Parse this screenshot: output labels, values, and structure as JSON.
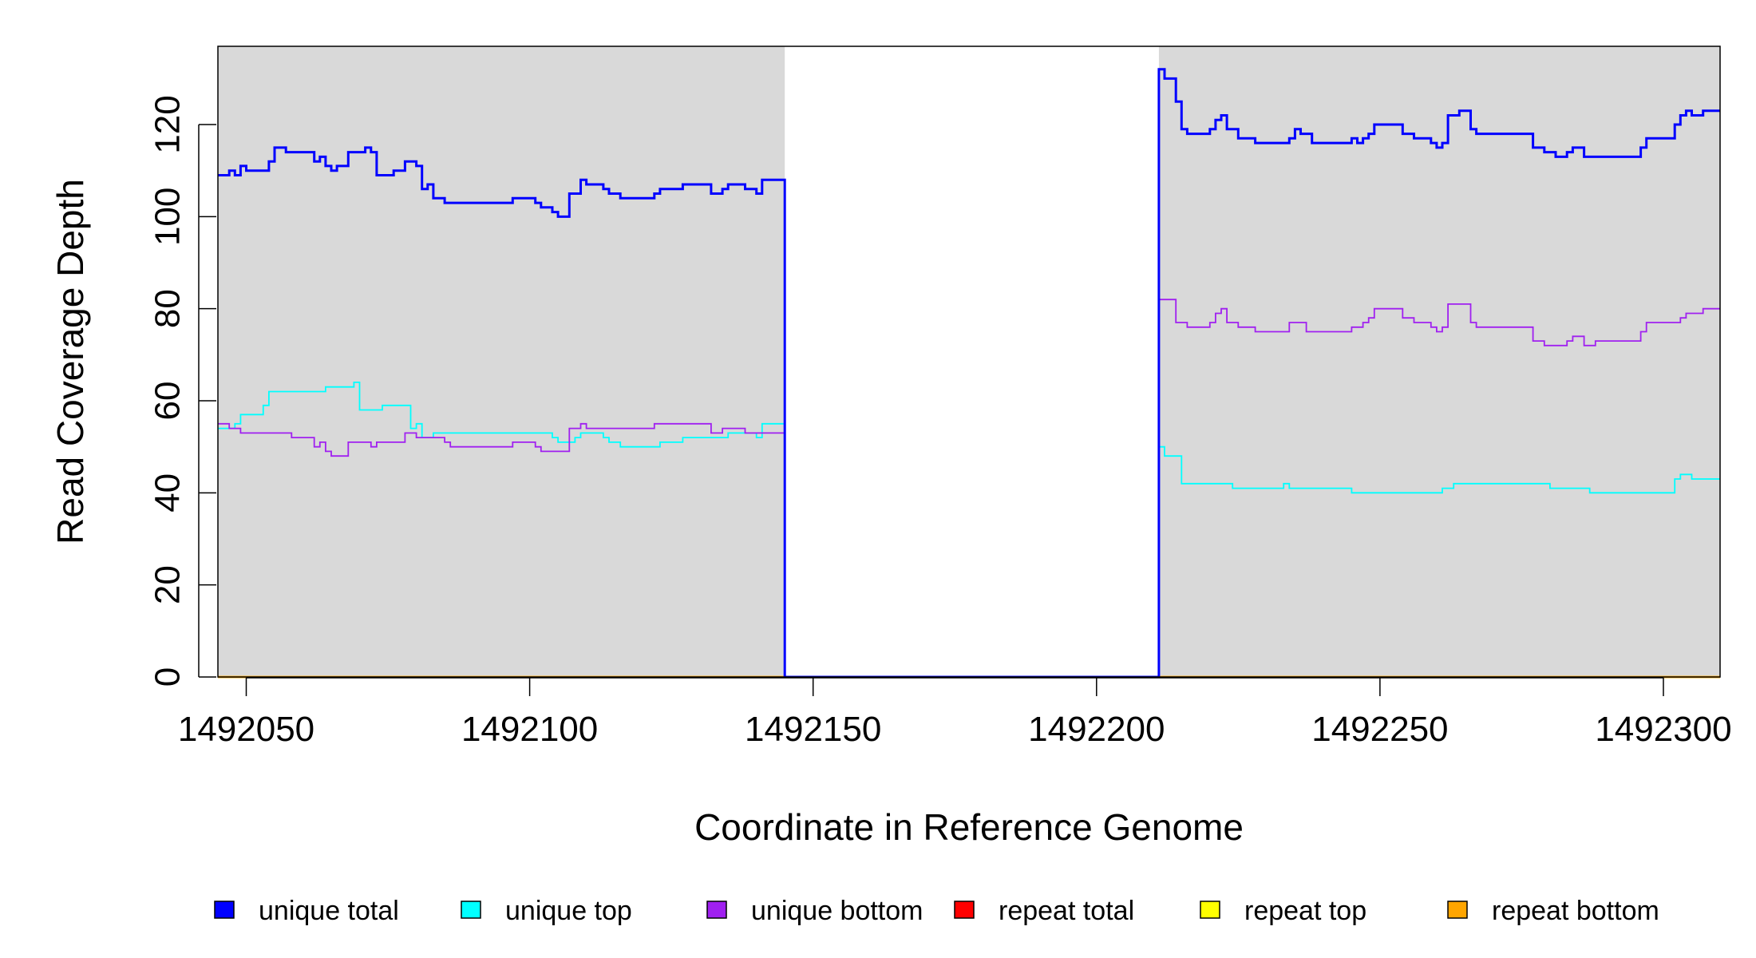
{
  "chart_data": {
    "type": "line",
    "xlabel": "Coordinate in Reference Genome",
    "ylabel": "Read Coverage Depth",
    "xlim": [
      1492045,
      1492310
    ],
    "ylim": [
      0,
      137
    ],
    "x_ticks": [
      1492050,
      1492100,
      1492150,
      1492200,
      1492250,
      1492300
    ],
    "x_tick_labels": [
      "1492050",
      "1492100",
      "1492150",
      "1492200",
      "1492250",
      "1492300"
    ],
    "y_ticks": [
      0,
      20,
      40,
      60,
      80,
      100,
      120
    ],
    "y_tick_labels": [
      "0",
      "20",
      "40",
      "60",
      "80",
      "100",
      "120"
    ],
    "shaded_regions": [
      {
        "x_start": 1492045,
        "x_end": 1492145,
        "color": "#d9d9d9"
      },
      {
        "x_start": 1492211,
        "x_end": 1492310,
        "color": "#d9d9d9"
      }
    ],
    "legend_position": "bottom",
    "series": [
      {
        "name": "unique total",
        "color": "#0000ff",
        "points": [
          [
            1492045,
            109
          ],
          [
            1492047,
            110
          ],
          [
            1492048,
            109
          ],
          [
            1492049,
            111
          ],
          [
            1492050,
            110
          ],
          [
            1492052,
            110
          ],
          [
            1492053,
            110
          ],
          [
            1492054,
            112
          ],
          [
            1492055,
            115
          ],
          [
            1492057,
            114
          ],
          [
            1492060,
            114
          ],
          [
            1492061,
            114
          ],
          [
            1492062,
            112
          ],
          [
            1492063,
            113
          ],
          [
            1492064,
            111
          ],
          [
            1492065,
            110
          ],
          [
            1492066,
            111
          ],
          [
            1492068,
            114
          ],
          [
            1492071,
            115
          ],
          [
            1492072,
            114
          ],
          [
            1492073,
            109
          ],
          [
            1492076,
            110
          ],
          [
            1492078,
            112
          ],
          [
            1492080,
            111
          ],
          [
            1492081,
            106
          ],
          [
            1492082,
            107
          ],
          [
            1492083,
            104
          ],
          [
            1492085,
            103
          ],
          [
            1492089,
            103
          ],
          [
            1492093,
            103
          ],
          [
            1492096,
            103
          ],
          [
            1492097,
            104
          ],
          [
            1492100,
            104
          ],
          [
            1492101,
            103
          ],
          [
            1492102,
            102
          ],
          [
            1492104,
            101
          ],
          [
            1492105,
            100
          ],
          [
            1492107,
            105
          ],
          [
            1492109,
            108
          ],
          [
            1492110,
            107
          ],
          [
            1492113,
            106
          ],
          [
            1492114,
            105
          ],
          [
            1492116,
            104
          ],
          [
            1492122,
            105
          ],
          [
            1492123,
            106
          ],
          [
            1492127,
            107
          ],
          [
            1492132,
            105
          ],
          [
            1492134,
            106
          ],
          [
            1492135,
            107
          ],
          [
            1492138,
            106
          ],
          [
            1492140,
            105
          ],
          [
            1492141,
            108
          ],
          [
            1492145,
            0
          ],
          [
            1492211,
            132
          ],
          [
            1492212,
            130
          ],
          [
            1492214,
            125
          ],
          [
            1492215,
            119
          ],
          [
            1492216,
            118
          ],
          [
            1492219,
            118
          ],
          [
            1492220,
            119
          ],
          [
            1492221,
            121
          ],
          [
            1492222,
            122
          ],
          [
            1492223,
            119
          ],
          [
            1492225,
            117
          ],
          [
            1492228,
            116
          ],
          [
            1492234,
            117
          ],
          [
            1492235,
            119
          ],
          [
            1492236,
            118
          ],
          [
            1492238,
            116
          ],
          [
            1492245,
            117
          ],
          [
            1492246,
            116
          ],
          [
            1492247,
            117
          ],
          [
            1492248,
            118
          ],
          [
            1492249,
            120
          ],
          [
            1492254,
            118
          ],
          [
            1492256,
            117
          ],
          [
            1492259,
            116
          ],
          [
            1492260,
            115
          ],
          [
            1492261,
            116
          ],
          [
            1492262,
            122
          ],
          [
            1492264,
            123
          ],
          [
            1492266,
            119
          ],
          [
            1492267,
            118
          ],
          [
            1492277,
            115
          ],
          [
            1492279,
            114
          ],
          [
            1492281,
            113
          ],
          [
            1492283,
            114
          ],
          [
            1492284,
            115
          ],
          [
            1492286,
            113
          ],
          [
            1492296,
            115
          ],
          [
            1492297,
            117
          ],
          [
            1492302,
            120
          ],
          [
            1492303,
            122
          ],
          [
            1492304,
            123
          ],
          [
            1492305,
            122
          ],
          [
            1492307,
            123
          ],
          [
            1492310,
            123
          ]
        ]
      },
      {
        "name": "unique top",
        "color": "#00ffff",
        "points": [
          [
            1492045,
            54
          ],
          [
            1492048,
            55
          ],
          [
            1492049,
            57
          ],
          [
            1492052,
            57
          ],
          [
            1492053,
            59
          ],
          [
            1492054,
            62
          ],
          [
            1492058,
            62
          ],
          [
            1492063,
            62
          ],
          [
            1492064,
            63
          ],
          [
            1492068,
            63
          ],
          [
            1492069,
            64
          ],
          [
            1492070,
            58
          ],
          [
            1492073,
            58
          ],
          [
            1492074,
            59
          ],
          [
            1492078,
            59
          ],
          [
            1492079,
            54
          ],
          [
            1492080,
            55
          ],
          [
            1492081,
            52
          ],
          [
            1492083,
            53
          ],
          [
            1492089,
            53
          ],
          [
            1492093,
            53
          ],
          [
            1492097,
            53
          ],
          [
            1492101,
            53
          ],
          [
            1492104,
            52
          ],
          [
            1492105,
            51
          ],
          [
            1492108,
            52
          ],
          [
            1492109,
            53
          ],
          [
            1492111,
            53
          ],
          [
            1492113,
            52
          ],
          [
            1492114,
            51
          ],
          [
            1492116,
            50
          ],
          [
            1492123,
            51
          ],
          [
            1492127,
            52
          ],
          [
            1492133,
            52
          ],
          [
            1492135,
            53
          ],
          [
            1492138,
            53
          ],
          [
            1492140,
            52
          ],
          [
            1492141,
            55
          ],
          [
            1492145,
            0
          ],
          [
            1492211,
            50
          ],
          [
            1492212,
            48
          ],
          [
            1492215,
            42
          ],
          [
            1492219,
            42
          ],
          [
            1492224,
            41
          ],
          [
            1492227,
            41
          ],
          [
            1492233,
            42
          ],
          [
            1492234,
            41
          ],
          [
            1492238,
            41
          ],
          [
            1492245,
            40
          ],
          [
            1492248,
            40
          ],
          [
            1492257,
            40
          ],
          [
            1492261,
            41
          ],
          [
            1492263,
            42
          ],
          [
            1492268,
            42
          ],
          [
            1492276,
            42
          ],
          [
            1492280,
            41
          ],
          [
            1492287,
            40
          ],
          [
            1492296,
            40
          ],
          [
            1492302,
            43
          ],
          [
            1492303,
            44
          ],
          [
            1492305,
            43
          ],
          [
            1492310,
            43
          ]
        ]
      },
      {
        "name": "unique bottom",
        "color": "#a020f0",
        "points": [
          [
            1492045,
            55
          ],
          [
            1492047,
            54
          ],
          [
            1492049,
            53
          ],
          [
            1492055,
            53
          ],
          [
            1492058,
            52
          ],
          [
            1492061,
            52
          ],
          [
            1492062,
            50
          ],
          [
            1492063,
            51
          ],
          [
            1492064,
            49
          ],
          [
            1492065,
            48
          ],
          [
            1492067,
            48
          ],
          [
            1492068,
            51
          ],
          [
            1492071,
            51
          ],
          [
            1492072,
            50
          ],
          [
            1492073,
            51
          ],
          [
            1492075,
            51
          ],
          [
            1492077,
            51
          ],
          [
            1492078,
            53
          ],
          [
            1492080,
            52
          ],
          [
            1492085,
            51
          ],
          [
            1492086,
            50
          ],
          [
            1492094,
            50
          ],
          [
            1492097,
            51
          ],
          [
            1492100,
            51
          ],
          [
            1492101,
            50
          ],
          [
            1492102,
            49
          ],
          [
            1492107,
            54
          ],
          [
            1492109,
            55
          ],
          [
            1492110,
            54
          ],
          [
            1492115,
            54
          ],
          [
            1492120,
            54
          ],
          [
            1492122,
            55
          ],
          [
            1492127,
            55
          ],
          [
            1492130,
            55
          ],
          [
            1492132,
            53
          ],
          [
            1492134,
            54
          ],
          [
            1492138,
            53
          ],
          [
            1492141,
            53
          ],
          [
            1492145,
            0
          ],
          [
            1492211,
            82
          ],
          [
            1492214,
            77
          ],
          [
            1492216,
            76
          ],
          [
            1492219,
            76
          ],
          [
            1492220,
            77
          ],
          [
            1492221,
            79
          ],
          [
            1492222,
            80
          ],
          [
            1492223,
            77
          ],
          [
            1492225,
            76
          ],
          [
            1492228,
            75
          ],
          [
            1492234,
            77
          ],
          [
            1492237,
            75
          ],
          [
            1492244,
            75
          ],
          [
            1492245,
            76
          ],
          [
            1492247,
            77
          ],
          [
            1492248,
            78
          ],
          [
            1492249,
            80
          ],
          [
            1492254,
            78
          ],
          [
            1492256,
            77
          ],
          [
            1492259,
            76
          ],
          [
            1492260,
            75
          ],
          [
            1492261,
            76
          ],
          [
            1492262,
            81
          ],
          [
            1492266,
            77
          ],
          [
            1492267,
            76
          ],
          [
            1492277,
            73
          ],
          [
            1492279,
            72
          ],
          [
            1492283,
            73
          ],
          [
            1492284,
            74
          ],
          [
            1492286,
            72
          ],
          [
            1492288,
            73
          ],
          [
            1492296,
            75
          ],
          [
            1492297,
            77
          ],
          [
            1492303,
            78
          ],
          [
            1492304,
            79
          ],
          [
            1492307,
            80
          ],
          [
            1492310,
            80
          ]
        ]
      },
      {
        "name": "repeat total",
        "color": "#ff0000",
        "points": [
          [
            1492045,
            0
          ],
          [
            1492310,
            0
          ]
        ]
      },
      {
        "name": "repeat top",
        "color": "#ffff00",
        "points": [
          [
            1492045,
            0
          ],
          [
            1492310,
            0
          ]
        ]
      },
      {
        "name": "repeat bottom",
        "color": "#ffa500",
        "points": [
          [
            1492045,
            0
          ],
          [
            1492310,
            0
          ]
        ]
      }
    ]
  }
}
